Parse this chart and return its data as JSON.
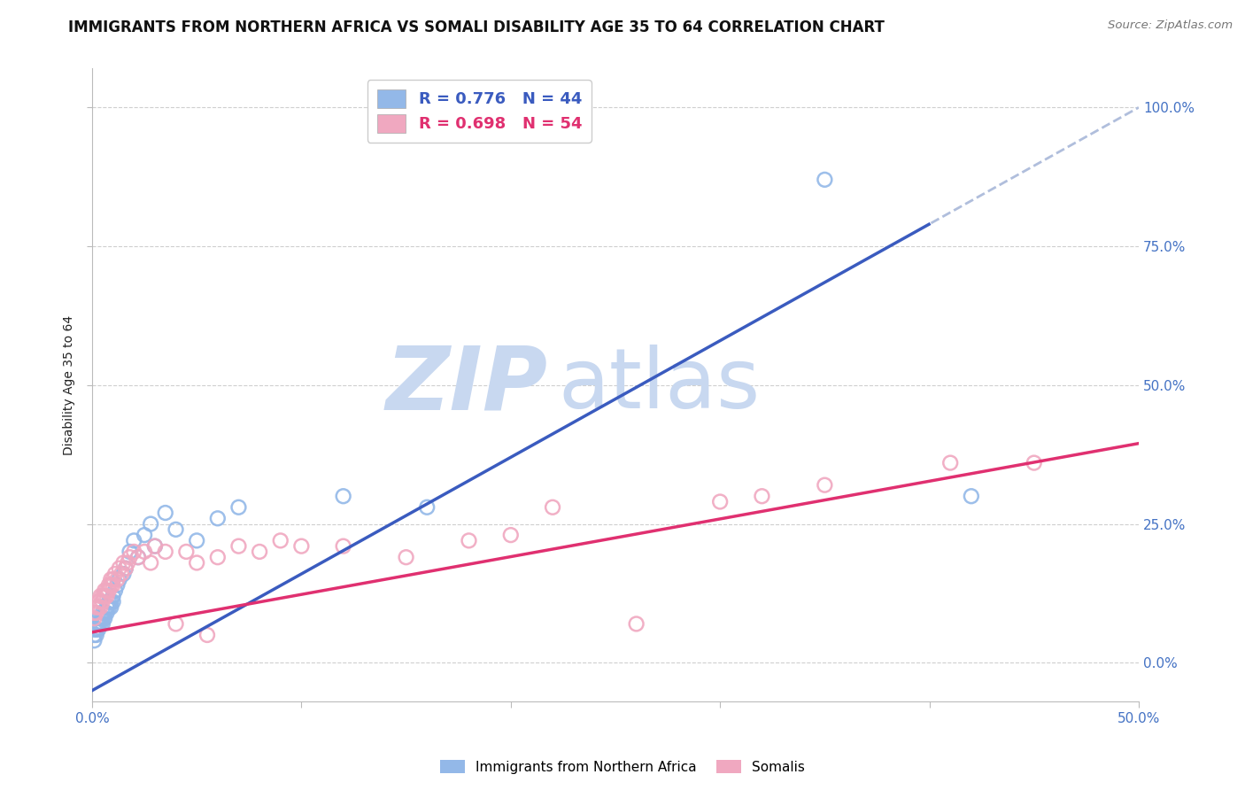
{
  "title": "IMMIGRANTS FROM NORTHERN AFRICA VS SOMALI DISABILITY AGE 35 TO 64 CORRELATION CHART",
  "source": "Source: ZipAtlas.com",
  "ylabel_label": "Disability Age 35 to 64",
  "x_min": 0.0,
  "x_max": 0.5,
  "y_min": -0.07,
  "y_max": 1.07,
  "x_ticks": [
    0.0,
    0.1,
    0.2,
    0.3,
    0.4,
    0.5
  ],
  "y_ticks": [
    0.0,
    0.25,
    0.5,
    0.75,
    1.0
  ],
  "blue_R": 0.776,
  "blue_N": 44,
  "pink_R": 0.698,
  "pink_N": 54,
  "blue_line_color": "#3A5BBF",
  "blue_scatter_color": "#93B8E8",
  "pink_line_color": "#E03070",
  "pink_scatter_color": "#F0A8C0",
  "dashed_line_color": "#B0BEDC",
  "watermark_color": "#C8D8F0",
  "background_color": "#FFFFFF",
  "grid_color": "#BBBBBB",
  "title_fontsize": 12,
  "axis_label_fontsize": 10,
  "tick_label_color": "#4472C4",
  "legend_label1": "Immigrants from Northern Africa",
  "legend_label2": "Somalis",
  "blue_slope": 2.1,
  "blue_intercept": -0.05,
  "pink_slope": 0.68,
  "pink_intercept": 0.055,
  "regression_cutoff": 0.4,
  "blue_scatter_x": [
    0.001,
    0.001,
    0.001,
    0.002,
    0.002,
    0.002,
    0.003,
    0.003,
    0.003,
    0.004,
    0.004,
    0.005,
    0.005,
    0.005,
    0.006,
    0.006,
    0.007,
    0.007,
    0.008,
    0.008,
    0.009,
    0.009,
    0.01,
    0.01,
    0.011,
    0.012,
    0.013,
    0.015,
    0.016,
    0.018,
    0.02,
    0.022,
    0.025,
    0.028,
    0.03,
    0.035,
    0.04,
    0.05,
    0.06,
    0.07,
    0.12,
    0.16,
    0.35,
    0.42
  ],
  "blue_scatter_y": [
    0.04,
    0.05,
    0.06,
    0.05,
    0.07,
    0.06,
    0.06,
    0.07,
    0.08,
    0.07,
    0.08,
    0.07,
    0.09,
    0.08,
    0.09,
    0.08,
    0.1,
    0.09,
    0.11,
    0.1,
    0.11,
    0.1,
    0.12,
    0.11,
    0.13,
    0.14,
    0.15,
    0.16,
    0.17,
    0.2,
    0.22,
    0.19,
    0.23,
    0.25,
    0.21,
    0.27,
    0.24,
    0.22,
    0.26,
    0.28,
    0.3,
    0.28,
    0.87,
    0.3
  ],
  "pink_scatter_x": [
    0.001,
    0.001,
    0.002,
    0.002,
    0.003,
    0.003,
    0.004,
    0.004,
    0.005,
    0.005,
    0.006,
    0.006,
    0.007,
    0.007,
    0.008,
    0.008,
    0.009,
    0.009,
    0.01,
    0.01,
    0.011,
    0.012,
    0.013,
    0.014,
    0.015,
    0.016,
    0.017,
    0.018,
    0.02,
    0.022,
    0.025,
    0.028,
    0.03,
    0.035,
    0.04,
    0.045,
    0.05,
    0.055,
    0.06,
    0.07,
    0.08,
    0.09,
    0.1,
    0.12,
    0.15,
    0.18,
    0.2,
    0.22,
    0.26,
    0.3,
    0.32,
    0.35,
    0.41,
    0.45
  ],
  "pink_scatter_y": [
    0.08,
    0.09,
    0.09,
    0.1,
    0.1,
    0.11,
    0.1,
    0.12,
    0.11,
    0.12,
    0.12,
    0.13,
    0.13,
    0.12,
    0.14,
    0.13,
    0.14,
    0.15,
    0.15,
    0.14,
    0.16,
    0.15,
    0.17,
    0.16,
    0.18,
    0.17,
    0.18,
    0.19,
    0.2,
    0.19,
    0.2,
    0.18,
    0.21,
    0.2,
    0.07,
    0.2,
    0.18,
    0.05,
    0.19,
    0.21,
    0.2,
    0.22,
    0.21,
    0.21,
    0.19,
    0.22,
    0.23,
    0.28,
    0.07,
    0.29,
    0.3,
    0.32,
    0.36,
    0.36
  ]
}
